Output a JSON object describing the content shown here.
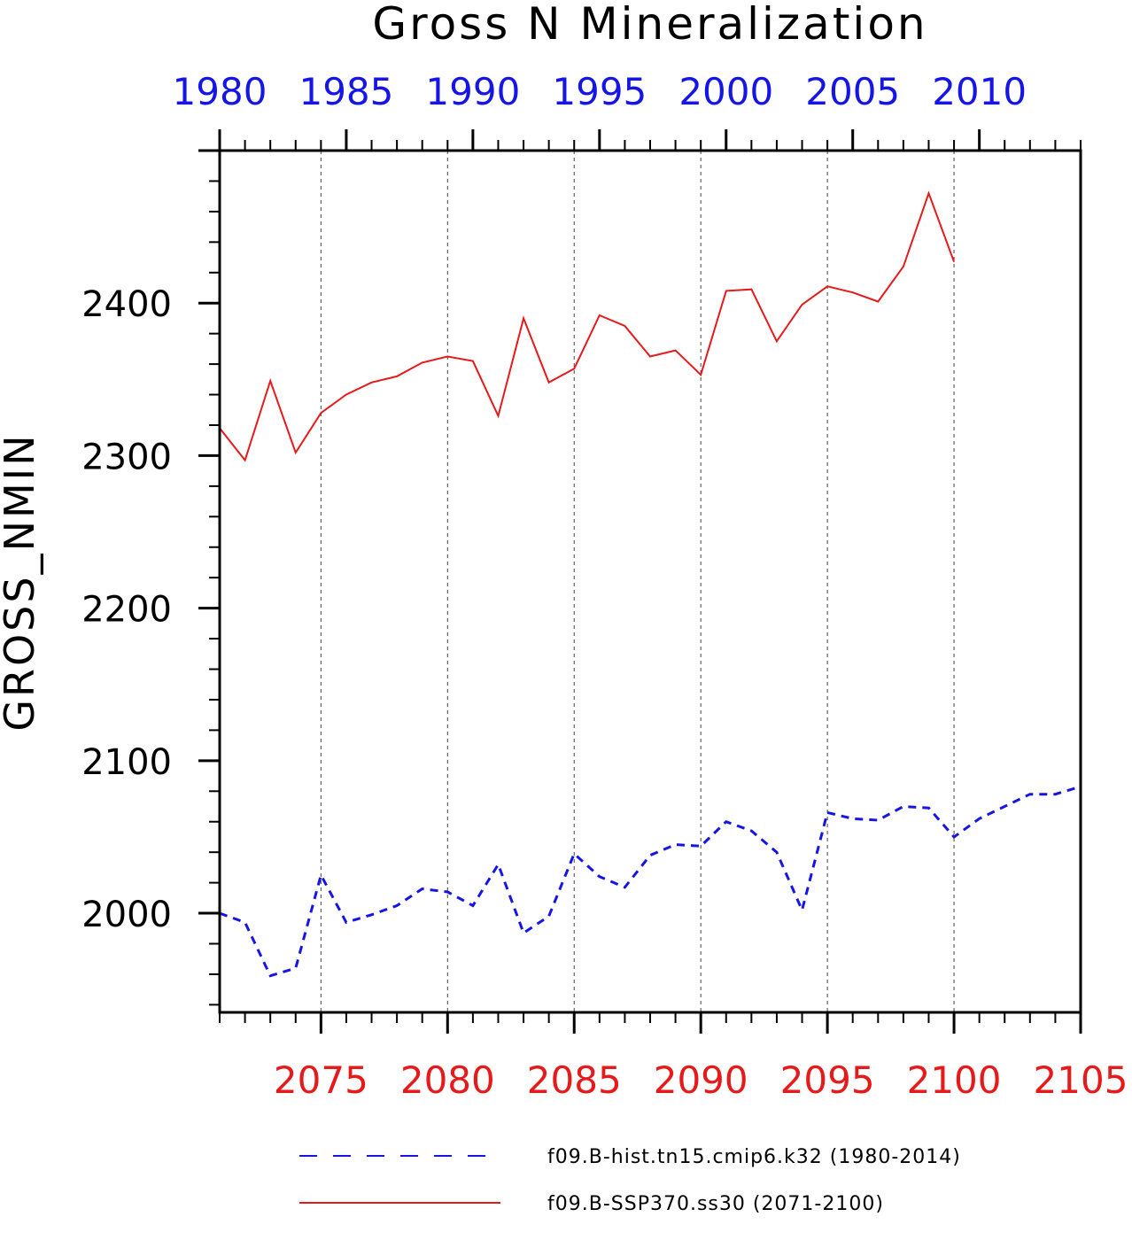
{
  "chart_data": {
    "type": "line",
    "title": "Gross N Mineralization",
    "ylabel": "GROSS_NMIN",
    "ylim": [
      1935,
      2500
    ],
    "y_ticks": [
      2000,
      2100,
      2200,
      2300,
      2400
    ],
    "x_bottom": {
      "range": [
        2071,
        2105
      ],
      "ticks": [
        2075,
        2080,
        2085,
        2090,
        2095,
        2100,
        2105
      ],
      "color": "#e61a1a"
    },
    "x_top": {
      "range": [
        1980,
        2014
      ],
      "ticks": [
        1980,
        1985,
        1990,
        1995,
        2000,
        2005,
        2010
      ],
      "color": "#1515e6"
    },
    "grid": "vertical dashed at major ticks",
    "legend_position": "bottom",
    "series": [
      {
        "name": "f09.B-hist.tn15.cmip6.k32 (1980-2014)",
        "axis": "top",
        "style": "dashed",
        "color": "#1515e6",
        "x": [
          1980,
          1981,
          1982,
          1983,
          1984,
          1985,
          1986,
          1987,
          1988,
          1989,
          1990,
          1991,
          1992,
          1993,
          1994,
          1995,
          1996,
          1997,
          1998,
          1999,
          2000,
          2001,
          2002,
          2003,
          2004,
          2005,
          2006,
          2007,
          2008,
          2009,
          2010,
          2011,
          2012,
          2013,
          2014
        ],
        "values": [
          2000,
          1994,
          1959,
          1964,
          2025,
          1994,
          1999,
          2005,
          2016,
          2014,
          2005,
          2032,
          1987,
          1998,
          2039,
          2024,
          2017,
          2038,
          2045,
          2044,
          2060,
          2054,
          2040,
          2002,
          2066,
          2062,
          2061,
          2070,
          2069,
          2050,
          2062,
          2070,
          2078,
          2078,
          2083
        ]
      },
      {
        "name": "f09.B-SSP370.ss30 (2071-2100)",
        "axis": "bottom",
        "style": "solid",
        "color": "#e61a1a",
        "x": [
          2071,
          2072,
          2073,
          2074,
          2075,
          2076,
          2077,
          2078,
          2079,
          2080,
          2081,
          2082,
          2083,
          2084,
          2085,
          2086,
          2087,
          2088,
          2089,
          2090,
          2091,
          2092,
          2093,
          2094,
          2095,
          2096,
          2097,
          2098,
          2099,
          2100
        ],
        "values": [
          2318,
          2297,
          2349,
          2302,
          2328,
          2340,
          2348,
          2352,
          2361,
          2365,
          2362,
          2326,
          2390,
          2348,
          2357,
          2392,
          2385,
          2365,
          2369,
          2353,
          2408,
          2409,
          2375,
          2399,
          2411,
          2407,
          2401,
          2424,
          2472,
          2427
        ]
      }
    ]
  }
}
